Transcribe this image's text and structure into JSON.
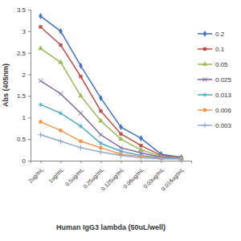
{
  "chart_data": {
    "type": "line",
    "x_label": "Human IgG3 lambda (50uL/well)",
    "y_label": "Abs (405nm)",
    "categories": [
      "2ug/mL",
      "1ug/mL",
      "0.5ug/mL",
      "0.25ug/mL",
      "0.125ug/mL",
      "0.06ug/mL",
      "0.03ug/mL",
      "0.016ug/mL"
    ],
    "series": [
      {
        "name": "0.2",
        "color": "#4472c4",
        "marker": "diamond",
        "values": [
          3.35,
          3.0,
          2.2,
          1.45,
          0.78,
          0.52,
          0.15,
          0.08
        ]
      },
      {
        "name": "0.1",
        "color": "#c0504d",
        "marker": "square",
        "values": [
          3.1,
          2.68,
          1.95,
          1.15,
          0.62,
          0.35,
          0.12,
          0.07
        ]
      },
      {
        "name": "0.05",
        "color": "#9bbb59",
        "marker": "triangle",
        "values": [
          2.6,
          2.28,
          1.5,
          0.92,
          0.5,
          0.25,
          0.1,
          0.06
        ]
      },
      {
        "name": "0.025",
        "color": "#8064a2",
        "marker": "x",
        "values": [
          1.85,
          1.55,
          1.1,
          0.6,
          0.3,
          0.18,
          0.08,
          0.05
        ]
      },
      {
        "name": "0.013",
        "color": "#4bacc6",
        "marker": "asterisk",
        "values": [
          1.3,
          1.1,
          0.8,
          0.4,
          0.22,
          0.12,
          0.06,
          0.05
        ]
      },
      {
        "name": "0.006",
        "color": "#f79646",
        "marker": "circle",
        "values": [
          0.9,
          0.7,
          0.45,
          0.3,
          0.15,
          0.1,
          0.05,
          0.04
        ]
      },
      {
        "name": "0.003",
        "color": "#93a9cf",
        "marker": "plus",
        "values": [
          0.6,
          0.45,
          0.3,
          0.2,
          0.12,
          0.07,
          0.04,
          0.04
        ]
      }
    ],
    "ylim": [
      0,
      3.5
    ],
    "yticks": [
      0,
      0.5,
      1,
      1.5,
      2,
      2.5,
      3,
      3.5
    ],
    "grid": false,
    "legend": "right"
  }
}
